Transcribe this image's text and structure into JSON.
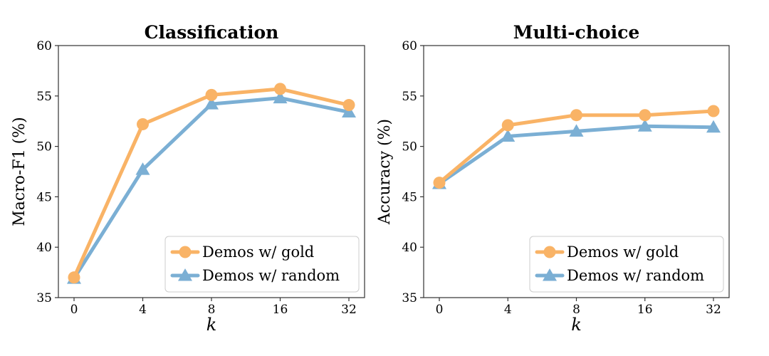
{
  "chart_data": [
    {
      "type": "line",
      "title": "Classification",
      "xlabel": "k",
      "ylabel": "Macro-F1 (%)",
      "categories": [
        "0",
        "4",
        "8",
        "16",
        "32"
      ],
      "ylim": [
        35,
        60
      ],
      "yticks": [
        35,
        40,
        45,
        50,
        55,
        60
      ],
      "series": [
        {
          "name": "Demos w/ gold",
          "color": "#F9B366",
          "marker": "circle",
          "values": [
            37.0,
            52.2,
            55.1,
            55.7,
            54.1
          ]
        },
        {
          "name": "Demos w/ random",
          "color": "#7BAFD4",
          "marker": "triangle",
          "values": [
            36.9,
            47.7,
            54.2,
            54.8,
            53.4
          ]
        }
      ],
      "legend": "bottom-right"
    },
    {
      "type": "line",
      "title": "Multi-choice",
      "xlabel": "k",
      "ylabel": "Accuracy (%)",
      "categories": [
        "0",
        "4",
        "8",
        "16",
        "32"
      ],
      "ylim": [
        35,
        60
      ],
      "yticks": [
        35,
        40,
        45,
        50,
        55,
        60
      ],
      "series": [
        {
          "name": "Demos w/ gold",
          "color": "#F9B366",
          "marker": "circle",
          "values": [
            46.4,
            52.1,
            53.1,
            53.1,
            53.5
          ]
        },
        {
          "name": "Demos w/ random",
          "color": "#7BAFD4",
          "marker": "triangle",
          "values": [
            46.3,
            51.0,
            51.5,
            52.0,
            51.9
          ]
        }
      ],
      "legend": "bottom-right"
    }
  ]
}
